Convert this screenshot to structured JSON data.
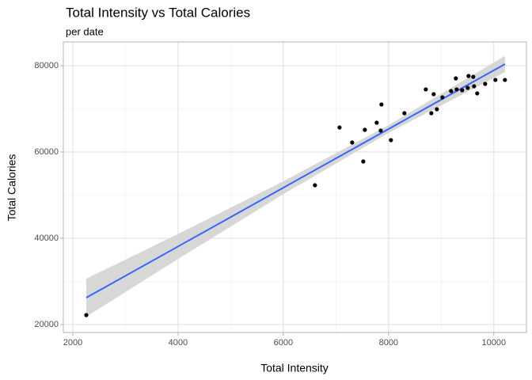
{
  "chart_data": {
    "type": "scatter",
    "title": "Total Intensity vs Total Calories",
    "subtitle": "per date",
    "x_label": "Total Intensity",
    "y_label": "Total Calories",
    "x": [
      2256,
      6601,
      7068,
      7308,
      7519,
      7549,
      7774,
      7850,
      7865,
      8045,
      8301,
      8707,
      8812,
      8857,
      8917,
      9023,
      9188,
      9278,
      9293,
      9398,
      9504,
      9519,
      9609,
      9624,
      9684,
      9835,
      10030,
      10211
    ],
    "values": [
      22200,
      52290,
      65690,
      62200,
      57800,
      65140,
      66790,
      64950,
      71010,
      62750,
      68990,
      74500,
      68990,
      73390,
      69910,
      72660,
      74130,
      77060,
      74500,
      74310,
      74860,
      77610,
      77430,
      75230,
      73580,
      75780,
      76700,
      76700
    ],
    "color": "#000000",
    "fit": {
      "color": "#3366ff",
      "band_color": "#d3d3d3",
      "x": [
        2256,
        4000,
        6000,
        8000,
        10211
      ],
      "y": [
        26240,
        38110,
        51720,
        65330,
        80370
      ],
      "lower": [
        21840,
        35210,
        50220,
        64430,
        78470
      ],
      "upper": [
        30640,
        41010,
        53220,
        66230,
        82270
      ]
    },
    "xlim": [
      1820,
      10620
    ],
    "ylim": [
      18170,
      85500
    ],
    "xticks": [
      2000,
      4000,
      6000,
      8000,
      10000
    ],
    "yticks": [
      20000,
      40000,
      60000,
      80000
    ],
    "xminor": [
      3000,
      5000,
      7000,
      9000
    ],
    "yminor": [
      30000,
      50000,
      70000
    ],
    "grid": true
  }
}
